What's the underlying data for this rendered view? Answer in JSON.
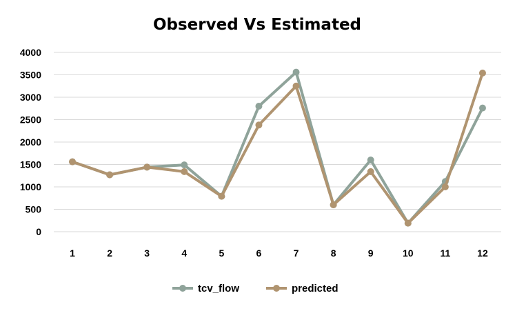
{
  "chart_data": {
    "type": "line",
    "title": "Observed Vs Estimated",
    "xlabel": "",
    "ylabel": "",
    "categories": [
      "1",
      "2",
      "3",
      "4",
      "5",
      "6",
      "7",
      "8",
      "9",
      "10",
      "11",
      "12"
    ],
    "ylim": [
      0,
      4000
    ],
    "yticks": [
      "0",
      "500",
      "1000",
      "1500",
      "2000",
      "2500",
      "3000",
      "3500",
      "4000"
    ],
    "grid": true,
    "legend_position": "bottom",
    "series": [
      {
        "name": "tcv_flow",
        "color": "#8fa39a",
        "values": [
          1560,
          1270,
          1440,
          1490,
          790,
          2800,
          3560,
          600,
          1600,
          190,
          1120,
          2760
        ]
      },
      {
        "name": "predicted",
        "color": "#b09470",
        "values": [
          1560,
          1270,
          1440,
          1340,
          790,
          2380,
          3250,
          600,
          1340,
          190,
          1000,
          3540
        ]
      }
    ]
  }
}
